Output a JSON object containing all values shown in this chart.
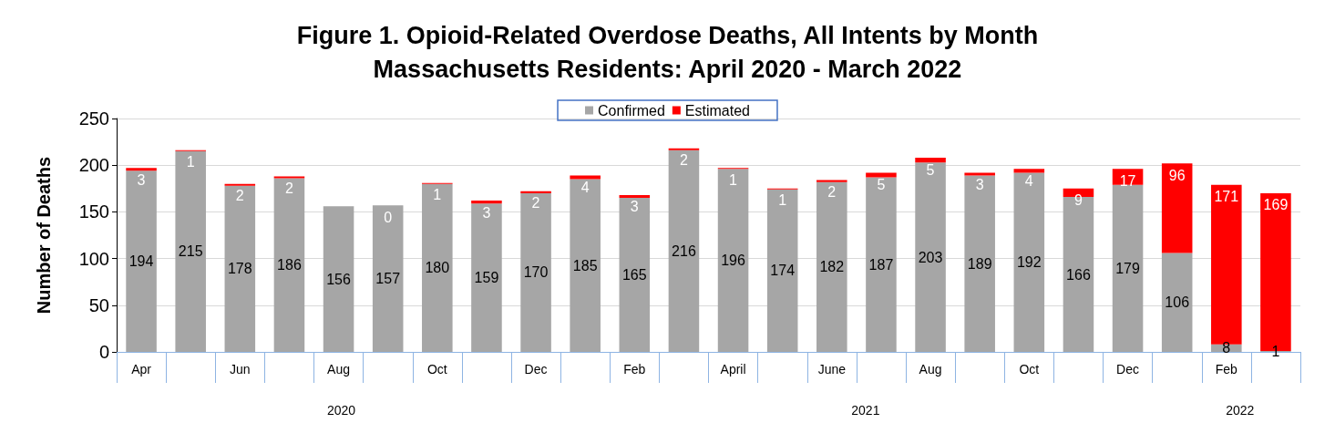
{
  "chart_data": {
    "type": "bar",
    "title": "Figure 1. Opioid-Related Overdose Deaths, All Intents by Month",
    "subtitle": "Massachusetts Residents: April 2020 - March 2022",
    "ylabel": "Number of Deaths",
    "categories": [
      "Apr",
      null,
      "Jun",
      null,
      "Aug",
      null,
      "Oct",
      null,
      "Dec",
      null,
      "Feb",
      null,
      "April",
      null,
      "June",
      null,
      "Aug",
      null,
      "Oct",
      null,
      "Dec",
      null,
      "Feb",
      null
    ],
    "series": [
      {
        "name": "Confirmed",
        "color": "#a6a6a6",
        "values": [
          194,
          215,
          178,
          186,
          156,
          157,
          180,
          159,
          170,
          185,
          165,
          216,
          196,
          174,
          182,
          187,
          203,
          189,
          192,
          166,
          179,
          106,
          8,
          1
        ]
      },
      {
        "name": "Estimated",
        "color": "#ff0000",
        "values": [
          3,
          1,
          2,
          2,
          null,
          0,
          1,
          3,
          2,
          4,
          3,
          2,
          1,
          1,
          2,
          5,
          5,
          3,
          4,
          9,
          17,
          96,
          171,
          169
        ]
      }
    ],
    "stacked": true,
    "data_labels": true,
    "ylim": [
      0,
      250
    ],
    "yticks": [
      0,
      50,
      100,
      150,
      200,
      250
    ],
    "grid": "y",
    "legend": "top",
    "annotations": [
      "2020",
      "2021",
      "2022"
    ]
  }
}
